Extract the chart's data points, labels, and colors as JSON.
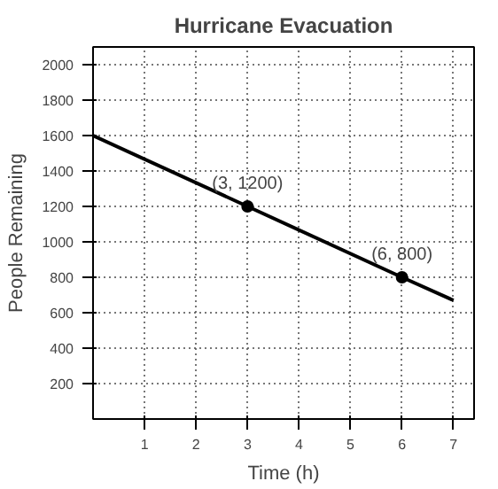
{
  "chart_data": {
    "type": "line",
    "title": "Hurricane Evacuation",
    "xlabel": "Time (h)",
    "ylabel": "People Remaining",
    "series": [
      {
        "color": "#000000",
        "x": [
          0,
          3,
          6,
          7
        ],
        "values": [
          1600,
          1200,
          800,
          670
        ],
        "marker": "none"
      },
      {
        "type": "scatter",
        "color": "#000000",
        "x": [
          3,
          6
        ],
        "values": [
          1200,
          800
        ],
        "marker": "circle"
      }
    ],
    "annotations": [
      {
        "text": "(3, 1200)",
        "x": 3,
        "y": 1200
      },
      {
        "text": "(6, 800)",
        "x": 6,
        "y": 800
      }
    ],
    "xlim": [
      0,
      7.4
    ],
    "ylim": [
      0,
      2100
    ],
    "xticks": [
      1,
      2,
      3,
      4,
      5,
      6,
      7
    ],
    "yticks": [
      200,
      400,
      600,
      800,
      1000,
      1200,
      1400,
      1600,
      1800,
      2000
    ],
    "grid": true,
    "line_style": "solid"
  }
}
